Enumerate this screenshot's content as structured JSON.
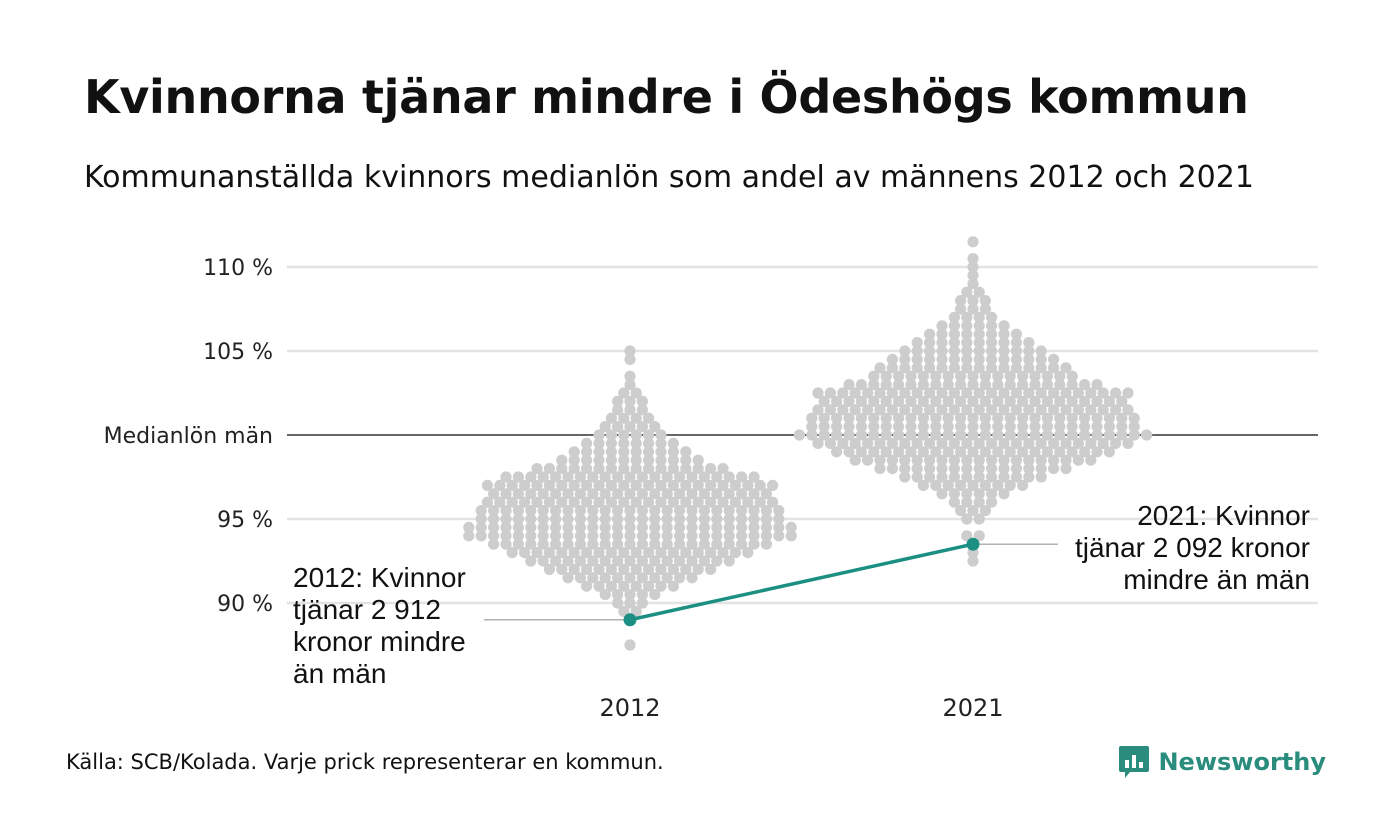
{
  "title": "Kvinnorna tjänar mindre i Ödeshögs kommun",
  "subtitle": "Kommunanställda kvinnors medianlön som andel av männens 2012 och 2021",
  "source": "Källa: SCB/Kolada. Varje prick representerar en kommun.",
  "brand": {
    "name": "Newsworthy",
    "logo_icon": "newsworthy-chart-icon"
  },
  "colors": {
    "dots": "#cdcdcd",
    "highlight": "#1a8f82",
    "gridline": "#e3e3e3",
    "reference_line": "#333333",
    "annotation_leader": "#999999"
  },
  "annotations": {
    "2012": "2012: Kvinnor\ntjänar 2 912\nkronor mindre\nän män",
    "2021": "2021: Kvinnor\ntjänar 2 092 kronor\nmindre än män"
  },
  "chart_data": {
    "type": "scatter",
    "subtype": "beeswarm",
    "title": "Kvinnorna tjänar mindre i Ödeshögs kommun",
    "subtitle": "Kommunanställda kvinnors medianlön som andel av männens 2012 och 2021",
    "categories": [
      "2012",
      "2021"
    ],
    "ylim": [
      85.5,
      111.5
    ],
    "yticks": [
      {
        "value": 90,
        "label": "90 %"
      },
      {
        "value": 95,
        "label": "95 %"
      },
      {
        "value": 100,
        "label": "Medianlön män"
      },
      {
        "value": 105,
        "label": "105 %"
      },
      {
        "value": 110,
        "label": "110 %"
      }
    ],
    "reference_line": {
      "value": 100,
      "label": "Medianlön män"
    },
    "grid": true,
    "distributions": [
      {
        "category": "2012",
        "bins": [
          {
            "y": 87.5,
            "n": 1
          },
          {
            "y": 89.0,
            "n": 1
          },
          {
            "y": 89.5,
            "n": 2
          },
          {
            "y": 90.0,
            "n": 3
          },
          {
            "y": 90.5,
            "n": 5
          },
          {
            "y": 91.0,
            "n": 8
          },
          {
            "y": 91.5,
            "n": 11
          },
          {
            "y": 92.0,
            "n": 14
          },
          {
            "y": 92.5,
            "n": 17
          },
          {
            "y": 93.0,
            "n": 20
          },
          {
            "y": 93.5,
            "n": 23
          },
          {
            "y": 94.0,
            "n": 27
          },
          {
            "y": 94.5,
            "n": 27
          },
          {
            "y": 95.0,
            "n": 25
          },
          {
            "y": 95.5,
            "n": 25
          },
          {
            "y": 96.0,
            "n": 24
          },
          {
            "y": 96.5,
            "n": 23
          },
          {
            "y": 97.0,
            "n": 24
          },
          {
            "y": 97.5,
            "n": 21
          },
          {
            "y": 98.0,
            "n": 16
          },
          {
            "y": 98.5,
            "n": 12
          },
          {
            "y": 99.0,
            "n": 10
          },
          {
            "y": 99.5,
            "n": 8
          },
          {
            "y": 100.0,
            "n": 6
          },
          {
            "y": 100.5,
            "n": 5
          },
          {
            "y": 101.0,
            "n": 4
          },
          {
            "y": 101.5,
            "n": 3
          },
          {
            "y": 102.0,
            "n": 3
          },
          {
            "y": 102.5,
            "n": 2
          },
          {
            "y": 103.0,
            "n": 1
          },
          {
            "y": 103.5,
            "n": 1
          },
          {
            "y": 104.5,
            "n": 1
          },
          {
            "y": 105.0,
            "n": 1
          }
        ]
      },
      {
        "category": "2021",
        "bins": [
          {
            "y": 92.5,
            "n": 1
          },
          {
            "y": 93.0,
            "n": 1
          },
          {
            "y": 94.0,
            "n": 2
          },
          {
            "y": 95.0,
            "n": 2
          },
          {
            "y": 95.5,
            "n": 3
          },
          {
            "y": 96.0,
            "n": 4
          },
          {
            "y": 96.5,
            "n": 6
          },
          {
            "y": 97.0,
            "n": 9
          },
          {
            "y": 97.5,
            "n": 12
          },
          {
            "y": 98.0,
            "n": 16
          },
          {
            "y": 98.5,
            "n": 20
          },
          {
            "y": 99.0,
            "n": 23
          },
          {
            "y": 99.5,
            "n": 26
          },
          {
            "y": 100.0,
            "n": 29
          },
          {
            "y": 100.5,
            "n": 27
          },
          {
            "y": 101.0,
            "n": 27
          },
          {
            "y": 101.5,
            "n": 26
          },
          {
            "y": 102.0,
            "n": 25
          },
          {
            "y": 102.5,
            "n": 26
          },
          {
            "y": 103.0,
            "n": 21
          },
          {
            "y": 103.5,
            "n": 17
          },
          {
            "y": 104.0,
            "n": 16
          },
          {
            "y": 104.5,
            "n": 14
          },
          {
            "y": 105.0,
            "n": 12
          },
          {
            "y": 105.5,
            "n": 10
          },
          {
            "y": 106.0,
            "n": 8
          },
          {
            "y": 106.5,
            "n": 6
          },
          {
            "y": 107.0,
            "n": 4
          },
          {
            "y": 107.5,
            "n": 3
          },
          {
            "y": 108.0,
            "n": 3
          },
          {
            "y": 108.5,
            "n": 2
          },
          {
            "y": 109.0,
            "n": 1
          },
          {
            "y": 109.5,
            "n": 1
          },
          {
            "y": 110.0,
            "n": 1
          },
          {
            "y": 110.5,
            "n": 1
          },
          {
            "y": 111.5,
            "n": 1
          }
        ]
      }
    ],
    "highlight": {
      "name": "Ödeshög",
      "points": [
        {
          "x": "2012",
          "y": 89.0
        },
        {
          "x": "2021",
          "y": 93.5
        }
      ]
    }
  }
}
